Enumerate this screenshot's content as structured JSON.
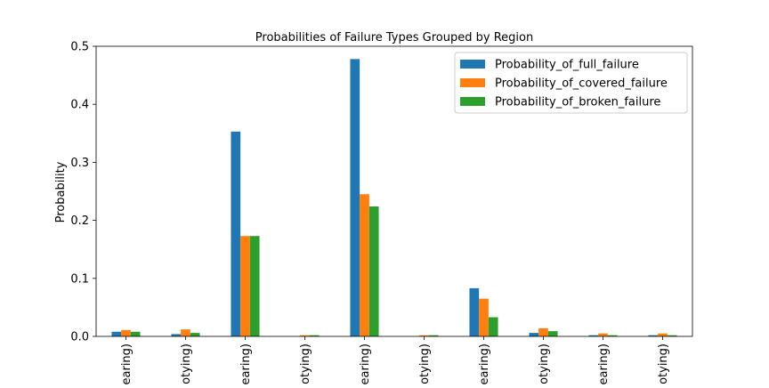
{
  "chart_data": {
    "type": "bar",
    "title": "Probabilities of Failure Types Grouped by Region",
    "xlabel": "",
    "ylabel": "Probability",
    "ylim": [
      0,
      0.5
    ],
    "yticks": [
      "0.0",
      "0.1",
      "0.2",
      "0.3",
      "0.4",
      "0.5"
    ],
    "grid": false,
    "legend_position": "top-right",
    "categories": [
      "earing)",
      "otying)",
      "earing)",
      "otying)",
      "earing)",
      "otying)",
      "earing)",
      "otying)",
      "earing)",
      "otying)"
    ],
    "series": [
      {
        "name": "Probability_of_full_failure",
        "color": "#1f77b4",
        "values": [
          0.008,
          0.004,
          0.353,
          0.0,
          0.478,
          0.0,
          0.083,
          0.006,
          0.002,
          0.002
        ]
      },
      {
        "name": "Probability_of_covered_failure",
        "color": "#ff7f0e",
        "values": [
          0.011,
          0.012,
          0.173,
          0.002,
          0.245,
          0.002,
          0.065,
          0.014,
          0.005,
          0.005
        ]
      },
      {
        "name": "Probability_of_broken_failure",
        "color": "#2ca02c",
        "values": [
          0.008,
          0.006,
          0.173,
          0.002,
          0.224,
          0.002,
          0.033,
          0.009,
          0.002,
          0.002
        ]
      }
    ]
  }
}
